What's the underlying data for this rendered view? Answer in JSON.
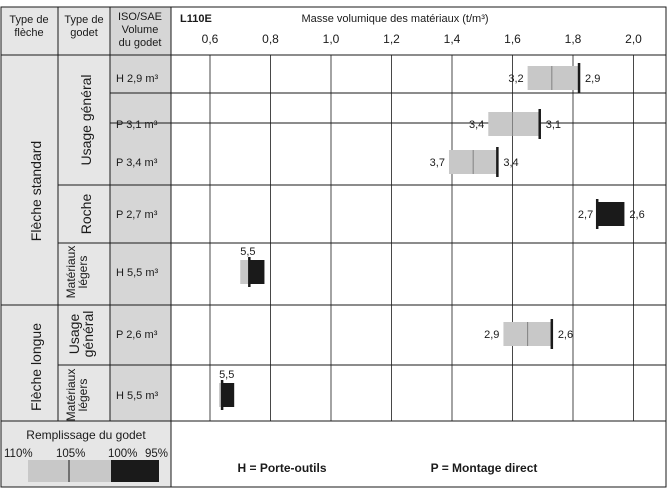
{
  "header": {
    "col1": "Type de flèche",
    "col2": "Type de godet",
    "col3_line1": "ISO/SAE",
    "col3_line2": "Volume",
    "col3_line3": "du godet",
    "model": "L110E",
    "axis_title": "Masse volumique des matériaux (t/m³)"
  },
  "boom_types": [
    "Flèche standard",
    "Flèche longue"
  ],
  "bucket_types": [
    {
      "lines": [
        "Usage général"
      ]
    },
    {
      "lines": [
        "Roche"
      ]
    },
    {
      "lines": [
        "Matériaux",
        "légers"
      ]
    },
    {
      "lines": [
        "Usage",
        "général"
      ]
    },
    {
      "lines": [
        "Matériaux",
        "légers"
      ]
    }
  ],
  "legend": {
    "title": "Remplissage du godet",
    "labels": [
      "110%",
      "105%",
      "100%",
      "95%"
    ],
    "h_note": "H = Porte-outils",
    "p_note": "P = Montage direct"
  },
  "colors": {
    "grey_fill": "#c8c8c8",
    "black_fill": "#1a1a1a",
    "left_bg": "#e6e6e6",
    "grid": "#1a1a1a"
  },
  "chart_data": {
    "type": "bar",
    "title": "Masse volumique des matériaux (t/m³)",
    "xlim": [
      0.5,
      2.1
    ],
    "xticks": [
      "0,6",
      "0,8",
      "1,0",
      "1,2",
      "1,4",
      "1,6",
      "1,8",
      "2,0"
    ],
    "xtick_values": [
      0.6,
      0.8,
      1.0,
      1.2,
      1.4,
      1.6,
      1.8,
      2.0
    ],
    "grid": true,
    "rows": [
      {
        "label": "H 2,9 m³",
        "mode": "grey",
        "x_110": 1.65,
        "x_105": 1.73,
        "x_100": 1.82,
        "left_label": "3,2",
        "right_label": "2,9",
        "labels_above": false
      },
      {
        "label": "P 3,1 m³",
        "mode": "grey",
        "x_110": 1.52,
        "x_105": 1.6,
        "x_100": 1.69,
        "left_label": "3,4",
        "right_label": "3,1",
        "labels_above": false
      },
      {
        "label": "P 3,4 m³",
        "mode": "grey",
        "x_110": 1.39,
        "x_105": 1.47,
        "x_100": 1.55,
        "left_label": "3,7",
        "right_label": "3,4",
        "labels_above": false
      },
      {
        "label": "P 2,7 m³",
        "mode": "black",
        "x_100": 1.88,
        "x_95": 1.97,
        "left_label": "2,7",
        "right_label": "2,6",
        "labels_above": false
      },
      {
        "label": "H 5,5 m³",
        "mode": "black",
        "x_105": 0.7,
        "x_100": 0.73,
        "x_95": 0.78,
        "left_label": "5,5",
        "right_label": "",
        "labels_above": true
      },
      {
        "label": "P 2,6 m³",
        "mode": "grey",
        "x_110": 1.57,
        "x_105": 1.65,
        "x_100": 1.73,
        "left_label": "2,9",
        "right_label": "2,6",
        "labels_above": false
      },
      {
        "label": "H 5,5 m³",
        "mode": "black",
        "x_105": 0.63,
        "x_100": 0.64,
        "x_95": 0.68,
        "left_label": "5,5",
        "right_label": "",
        "labels_above": true
      }
    ]
  }
}
